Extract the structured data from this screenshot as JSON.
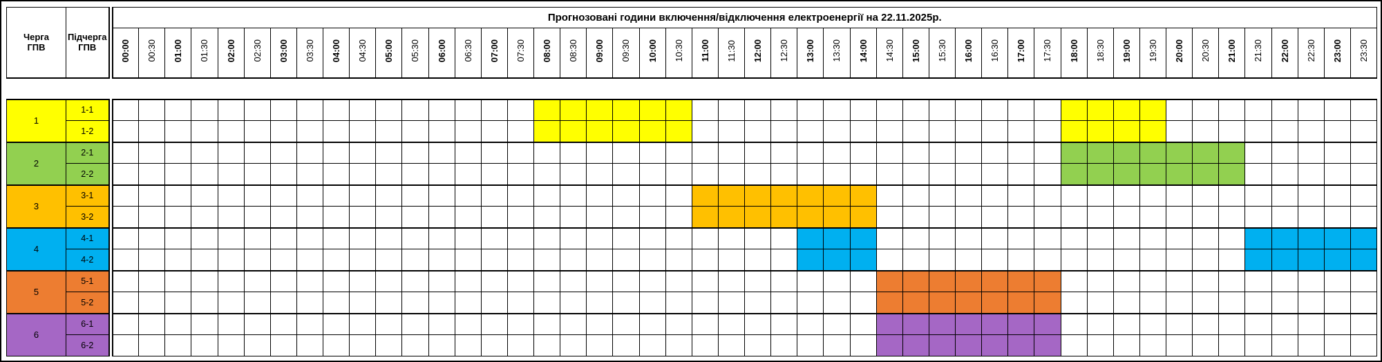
{
  "column_headers": {
    "queue_line1": "Черга",
    "queue_line2": "ГПВ",
    "subqueue_line1": "Підчерга",
    "subqueue_line2": "ГПВ"
  },
  "chart_data": {
    "type": "heatmap",
    "title": "Прогнозовані години включення/відключення електроенергії на 22.11.2025р.",
    "time_slots": [
      "00:00",
      "00:30",
      "01:00",
      "01:30",
      "02:00",
      "02:30",
      "03:00",
      "03:30",
      "04:00",
      "04:30",
      "05:00",
      "05:30",
      "06:00",
      "06:30",
      "07:00",
      "07:30",
      "08:00",
      "08:30",
      "09:00",
      "09:30",
      "10:00",
      "10:30",
      "11:00",
      "11:30",
      "12:00",
      "12:30",
      "13:00",
      "13:30",
      "14:00",
      "14:30",
      "15:00",
      "15:30",
      "16:00",
      "16:30",
      "17:00",
      "17:30",
      "18:00",
      "18:30",
      "19:00",
      "19:30",
      "20:00",
      "20:30",
      "21:00",
      "21:30",
      "22:00",
      "22:30",
      "23:00",
      "23:30"
    ],
    "queues": [
      {
        "id": "1",
        "color": "#ffff00",
        "subqueues": [
          {
            "label": "1-1",
            "off_intervals": [
              [
                "08:00",
                "11:00"
              ],
              [
                "18:00",
                "20:00"
              ]
            ]
          },
          {
            "label": "1-2",
            "off_intervals": [
              [
                "08:00",
                "11:00"
              ],
              [
                "18:00",
                "20:00"
              ]
            ]
          }
        ]
      },
      {
        "id": "2",
        "color": "#92d050",
        "subqueues": [
          {
            "label": "2-1",
            "off_intervals": [
              [
                "18:00",
                "21:30"
              ]
            ]
          },
          {
            "label": "2-2",
            "off_intervals": [
              [
                "18:00",
                "21:30"
              ]
            ]
          }
        ]
      },
      {
        "id": "3",
        "color": "#ffc000",
        "subqueues": [
          {
            "label": "3-1",
            "off_intervals": [
              [
                "11:00",
                "14:30"
              ]
            ]
          },
          {
            "label": "3-2",
            "off_intervals": [
              [
                "11:00",
                "14:30"
              ]
            ]
          }
        ]
      },
      {
        "id": "4",
        "color": "#00b0f0",
        "subqueues": [
          {
            "label": "4-1",
            "off_intervals": [
              [
                "13:00",
                "14:30"
              ],
              [
                "21:30",
                "24:00"
              ]
            ]
          },
          {
            "label": "4-2",
            "off_intervals": [
              [
                "13:00",
                "14:30"
              ],
              [
                "21:30",
                "24:00"
              ]
            ]
          }
        ]
      },
      {
        "id": "5",
        "color": "#ed7d31",
        "subqueues": [
          {
            "label": "5-1",
            "off_intervals": [
              [
                "14:30",
                "18:00"
              ]
            ]
          },
          {
            "label": "5-2",
            "off_intervals": [
              [
                "14:30",
                "18:00"
              ]
            ]
          }
        ]
      },
      {
        "id": "6",
        "color": "#a567c5",
        "subqueues": [
          {
            "label": "6-1",
            "off_intervals": [
              [
                "14:30",
                "18:00"
              ]
            ]
          },
          {
            "label": "6-2",
            "off_intervals": [
              [
                "14:30",
                "18:00"
              ]
            ]
          }
        ]
      }
    ]
  }
}
